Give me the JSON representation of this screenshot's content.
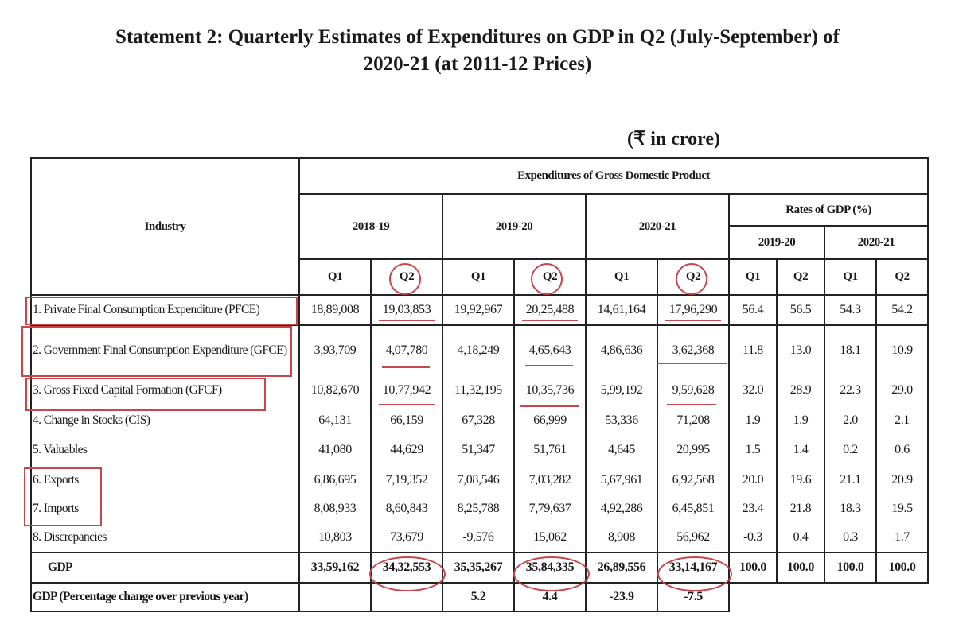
{
  "title_line1": "Statement 2: Quarterly Estimates of Expenditures on GDP in Q2 (July-September) of",
  "title_line2": "2020-21 (at 2011-12 Prices)",
  "unit": "(₹ in crore)",
  "header": {
    "industry": "Industry",
    "expenditures": "Expenditures of Gross Domestic Product",
    "years": [
      "2018-19",
      "2019-20",
      "2020-21"
    ],
    "rates": "Rates of GDP (%)",
    "rate_years": [
      "2019-20",
      "2020-21"
    ],
    "quarters": [
      "Q1",
      "Q2",
      "Q1",
      "Q2",
      "Q1",
      "Q2",
      "Q1",
      "Q2",
      "Q1",
      "Q2"
    ]
  },
  "rows": [
    {
      "label": "1. Private Final Consumption Expenditure (PFCE)",
      "values": [
        "18,89,008",
        "19,03,853",
        "19,92,967",
        "20,25,488",
        "14,61,164",
        "17,96,290",
        "56.4",
        "56.5",
        "54.3",
        "54.2"
      ]
    },
    {
      "label": "2. Government Final Consumption Expenditure (GFCE)",
      "values": [
        "3,93,709",
        "4,07,780",
        "4,18,249",
        "4,65,643",
        "4,86,636",
        "3,62,368",
        "11.8",
        "13.0",
        "18.1",
        "10.9"
      ]
    },
    {
      "label": "3. Gross Fixed Capital Formation (GFCF)",
      "values": [
        "10,82,670",
        "10,77,942",
        "11,32,195",
        "10,35,736",
        "5,99,192",
        "9,59,628",
        "32.0",
        "28.9",
        "22.3",
        "29.0"
      ]
    },
    {
      "label": "4. Change in Stocks (CIS)",
      "values": [
        "64,131",
        "66,159",
        "67,328",
        "66,999",
        "53,336",
        "71,208",
        "1.9",
        "1.9",
        "2.0",
        "2.1"
      ]
    },
    {
      "label": "5. Valuables",
      "values": [
        "41,080",
        "44,629",
        "51,347",
        "51,761",
        "4,645",
        "20,995",
        "1.5",
        "1.4",
        "0.2",
        "0.6"
      ]
    },
    {
      "label": "6. Exports",
      "values": [
        "6,86,695",
        "7,19,352",
        "7,08,546",
        "7,03,282",
        "5,67,961",
        "6,92,568",
        "20.0",
        "19.6",
        "21.1",
        "20.9"
      ]
    },
    {
      "label": "7. Imports",
      "values": [
        "8,08,933",
        "8,60,843",
        "8,25,788",
        "7,79,637",
        "4,92,286",
        "6,45,851",
        "23.4",
        "21.8",
        "18.3",
        "19.5"
      ]
    },
    {
      "label": "8. Discrepancies",
      "values": [
        "10,803",
        "73,679",
        "-9,576",
        "15,062",
        "8,908",
        "56,962",
        "-0.3",
        "0.4",
        "0.3",
        "1.7"
      ]
    }
  ],
  "gdp": {
    "label": "GDP",
    "values": [
      "33,59,162",
      "34,32,553",
      "35,35,267",
      "35,84,335",
      "26,89,556",
      "33,14,167",
      "100.0",
      "100.0",
      "100.0",
      "100.0"
    ]
  },
  "gdp_change": {
    "label": "GDP  (Percentage change over previous year)",
    "values": [
      "",
      "",
      "5.2",
      "4.4",
      "-23.9",
      "-7.5"
    ]
  },
  "annotation_color": "#c9454c"
}
